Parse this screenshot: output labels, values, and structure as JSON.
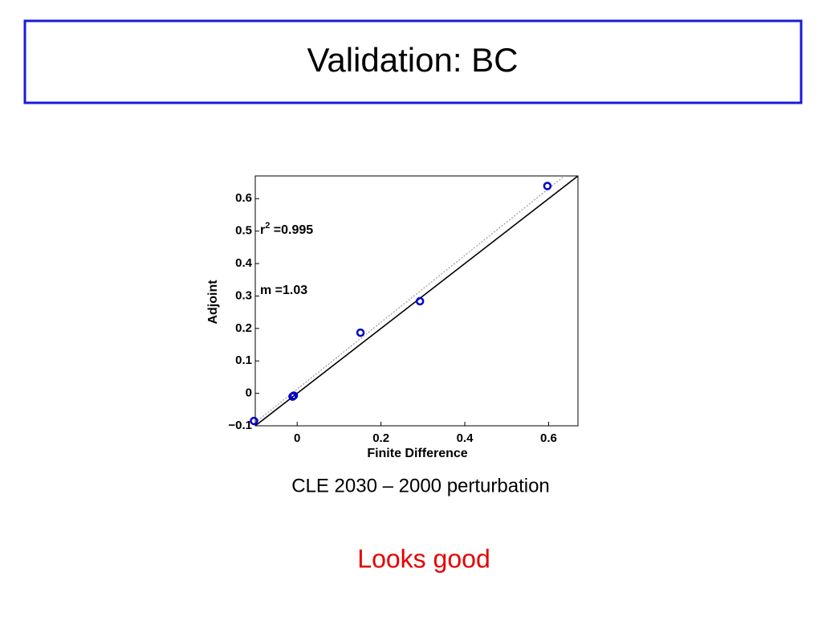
{
  "slide": {
    "title": "Validation: BC",
    "caption": "CLE 2030 – 2000 perturbation",
    "note": "Looks good"
  },
  "chart_data": {
    "type": "scatter",
    "xlabel": "Finite Difference",
    "ylabel": "Adjoint",
    "xlim": [
      -0.1,
      0.67
    ],
    "ylim": [
      -0.1,
      0.67
    ],
    "xticks": [
      0,
      0.2,
      0.4,
      0.6
    ],
    "yticks": [
      {
        "value": -0.1,
        "label": "−0.1"
      },
      0,
      0.1,
      0.2,
      0.3,
      0.4,
      0.5,
      0.6
    ],
    "series": [
      {
        "color": "#0000cc",
        "x": [
          -0.103,
          -0.011,
          -0.008,
          0.151,
          0.293,
          0.597
        ],
        "values": [
          -0.085,
          -0.01,
          -0.007,
          0.187,
          0.284,
          0.639
        ]
      }
    ],
    "lines": [
      {
        "color": "#000000",
        "style": "solid",
        "x": [
          -0.1,
          0.67
        ],
        "y": [
          -0.1,
          0.67
        ]
      },
      {
        "color": "#888888",
        "style": "dotted",
        "x": [
          -0.1,
          0.638
        ],
        "y": [
          -0.09,
          0.67
        ]
      }
    ],
    "annotations": [
      {
        "base": "r",
        "sup": "2",
        "text": " =0.995"
      },
      {
        "base": "m =1.03"
      }
    ]
  }
}
